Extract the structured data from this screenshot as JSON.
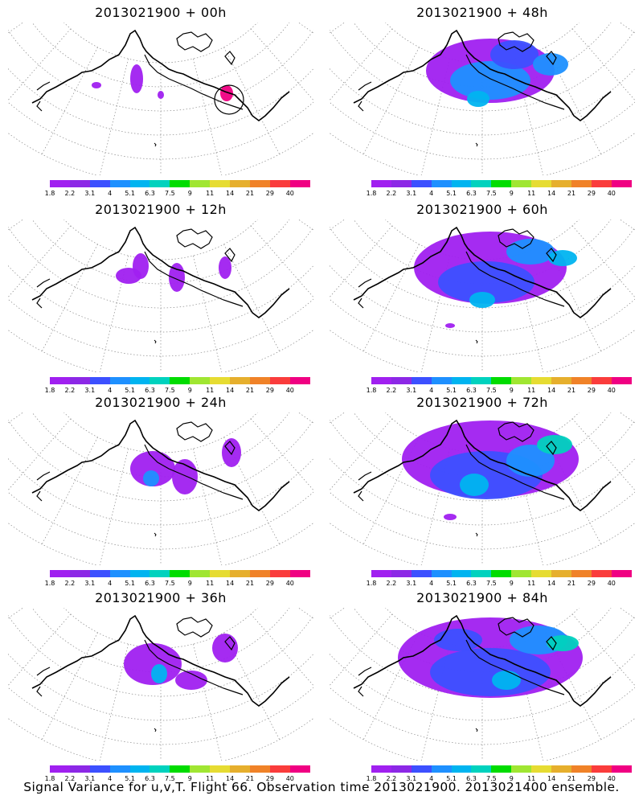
{
  "panels": [
    {
      "title": "2013021900 + 00h",
      "lead": 0
    },
    {
      "title": "2013021900 + 48h",
      "lead": 48
    },
    {
      "title": "2013021900 + 12h",
      "lead": 12
    },
    {
      "title": "2013021900 + 60h",
      "lead": 60
    },
    {
      "title": "2013021900 + 24h",
      "lead": 24
    },
    {
      "title": "2013021900 + 72h",
      "lead": 72
    },
    {
      "title": "2013021900 + 36h",
      "lead": 36
    },
    {
      "title": "2013021900 + 84h",
      "lead": 84
    }
  ],
  "colorbar": {
    "colors": [
      "#a020f0",
      "#8c28e6",
      "#3c50ff",
      "#1e90ff",
      "#00b4f0",
      "#00d2be",
      "#00dc00",
      "#a0e632",
      "#e6dc32",
      "#e6af2d",
      "#f08228",
      "#fa3c3c",
      "#f00082"
    ],
    "labels": [
      "1.8",
      "2.2",
      "3.1",
      "4",
      "5.1",
      "6.3",
      "7.5",
      "9",
      "11",
      "14",
      "21",
      "29",
      "40"
    ]
  },
  "caption": "Signal Variance for u,v,T. Flight 66. Observation time 2013021900. 2013021400 ensemble."
}
